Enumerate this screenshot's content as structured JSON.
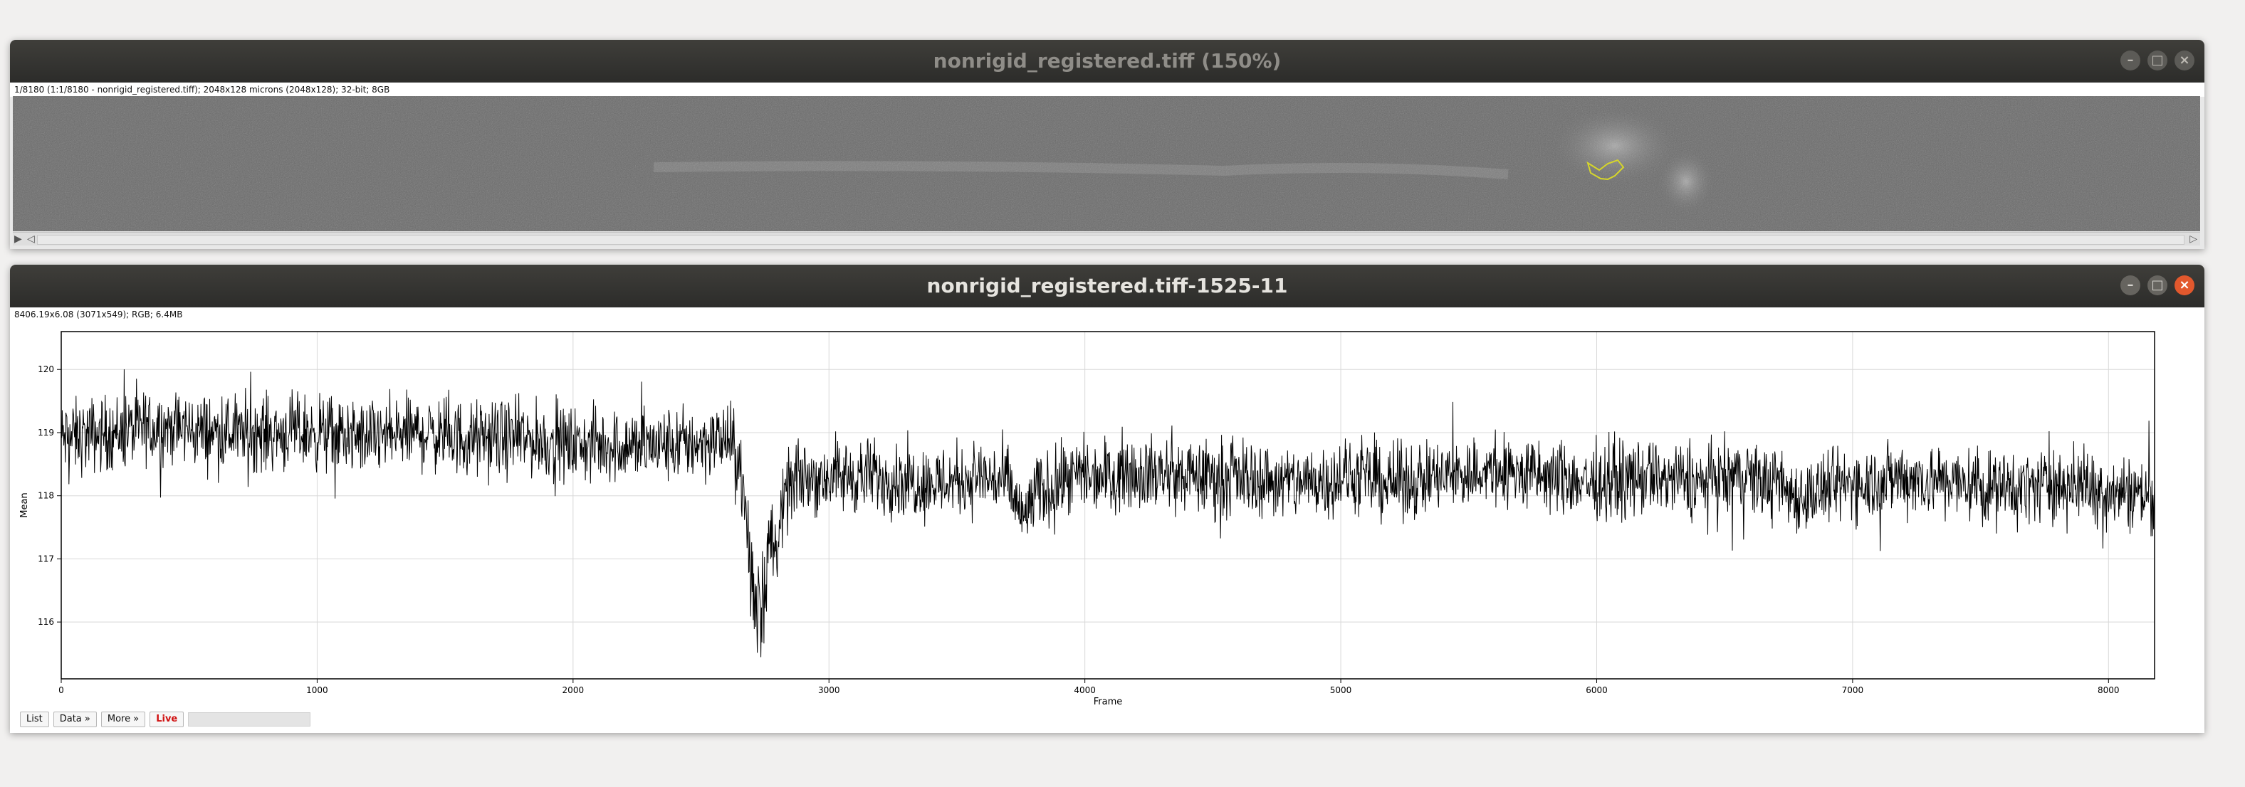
{
  "image_window": {
    "title": "nonrigid_registered.tiff (150%)",
    "info": "1/8180 (1:1/8180 - nonrigid_registered.tiff); 2048x128 microns (2048x128); 32-bit; 8GB",
    "controls": {
      "minimize": "–",
      "maximize": "□",
      "close": "×"
    },
    "scroll": {
      "play": "▶",
      "left": "◁",
      "right": "▷"
    }
  },
  "plot_window": {
    "title": "nonrigid_registered.tiff-1525-11",
    "info": "8406.19x6.08   (3071x549); RGB; 6.4MB",
    "controls": {
      "minimize": "–",
      "maximize": "□",
      "close": "×"
    },
    "buttons": {
      "list": "List",
      "data": "Data »",
      "more": "More »",
      "live": "Live"
    }
  },
  "colors": {
    "titlebar": "#2f2e2b",
    "close_active": "#e2582d",
    "roi": "#d6d62a",
    "trace": "#000000",
    "live": "#d01010"
  },
  "chart_data": {
    "type": "line",
    "title": "",
    "xlabel": "Frame",
    "ylabel": "Mean",
    "xlim": [
      0,
      8180
    ],
    "ylim": [
      115.1,
      120.6
    ],
    "xticks": [
      0,
      1000,
      2000,
      3000,
      4000,
      5000,
      6000,
      7000,
      8000
    ],
    "yticks": [
      116,
      117,
      118,
      119,
      120
    ],
    "grid": true,
    "series": [
      {
        "values_note_free": true,
        "x": [
          0,
          200,
          400,
          600,
          800,
          1000,
          1200,
          1400,
          1600,
          1800,
          2000,
          2200,
          2400,
          2600,
          2650,
          2700,
          2720,
          2750,
          2800,
          2850,
          2900,
          3000,
          3200,
          3400,
          3600,
          3700,
          3760,
          3800,
          3900,
          4000,
          4200,
          4400,
          4600,
          4800,
          5000,
          5200,
          5400,
          5600,
          5800,
          6000,
          6200,
          6400,
          6600,
          6800,
          7000,
          7200,
          7400,
          7600,
          7800,
          8000,
          8180
        ],
        "y": [
          118.9,
          119.0,
          119.1,
          119.0,
          119.0,
          119.0,
          118.9,
          119.0,
          118.9,
          118.9,
          118.8,
          118.8,
          118.8,
          118.9,
          118.6,
          116.6,
          116.2,
          116.8,
          117.4,
          118.2,
          118.3,
          118.3,
          118.3,
          118.2,
          118.3,
          118.2,
          117.6,
          118.0,
          118.2,
          118.3,
          118.4,
          118.3,
          118.3,
          118.2,
          118.3,
          118.2,
          118.3,
          118.4,
          118.3,
          118.2,
          118.3,
          118.2,
          118.3,
          118.0,
          118.2,
          118.3,
          118.2,
          118.1,
          118.2,
          118.1,
          118.0
        ],
        "noise_amplitude": 0.45
      }
    ]
  }
}
